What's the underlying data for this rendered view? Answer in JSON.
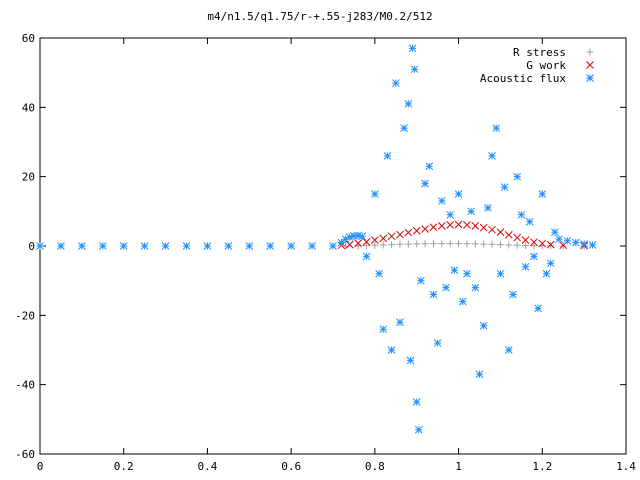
{
  "chart_data": {
    "type": "scatter",
    "title": "m4/n1.5/q1.75/r-+.55-j283/M0.2/512",
    "xlabel": "",
    "ylabel": "",
    "xlim": [
      0,
      1.4
    ],
    "ylim": [
      -60,
      60
    ],
    "x_ticks": [
      "0",
      "0.2",
      "0.4",
      "0.6",
      "0.8",
      "1",
      "1.2",
      "1.4"
    ],
    "y_ticks": [
      "-60",
      "-40",
      "-20",
      "0",
      "20",
      "40",
      "60"
    ],
    "grid": false,
    "legend_position": "top-right",
    "series": [
      {
        "name": "R stress",
        "marker": "plus",
        "color": "#a0a0a0",
        "points": [
          [
            0.73,
            0.0
          ],
          [
            0.76,
            0.05
          ],
          [
            0.78,
            0.1
          ],
          [
            0.8,
            0.2
          ],
          [
            0.82,
            0.3
          ],
          [
            0.84,
            0.4
          ],
          [
            0.86,
            0.5
          ],
          [
            0.88,
            0.55
          ],
          [
            0.9,
            0.6
          ],
          [
            0.92,
            0.65
          ],
          [
            0.94,
            0.7
          ],
          [
            0.96,
            0.7
          ],
          [
            0.98,
            0.7
          ],
          [
            1.0,
            0.7
          ],
          [
            1.02,
            0.65
          ],
          [
            1.04,
            0.6
          ],
          [
            1.06,
            0.55
          ],
          [
            1.08,
            0.5
          ],
          [
            1.1,
            0.4
          ],
          [
            1.12,
            0.3
          ],
          [
            1.14,
            0.2
          ],
          [
            1.16,
            0.15
          ],
          [
            1.18,
            0.1
          ],
          [
            1.2,
            0.05
          ],
          [
            1.22,
            0.02
          ],
          [
            1.25,
            0.0
          ],
          [
            1.3,
            0.0
          ]
        ]
      },
      {
        "name": "G work",
        "marker": "cross",
        "color": "#e00000",
        "points": [
          [
            0.72,
            0.2
          ],
          [
            0.74,
            0.4
          ],
          [
            0.76,
            0.8
          ],
          [
            0.78,
            1.2
          ],
          [
            0.8,
            1.7
          ],
          [
            0.82,
            2.2
          ],
          [
            0.84,
            2.8
          ],
          [
            0.86,
            3.3
          ],
          [
            0.88,
            3.9
          ],
          [
            0.9,
            4.4
          ],
          [
            0.92,
            4.9
          ],
          [
            0.94,
            5.4
          ],
          [
            0.96,
            5.8
          ],
          [
            0.98,
            6.1
          ],
          [
            1.0,
            6.2
          ],
          [
            1.02,
            6.1
          ],
          [
            1.04,
            5.8
          ],
          [
            1.06,
            5.3
          ],
          [
            1.08,
            4.7
          ],
          [
            1.1,
            4.0
          ],
          [
            1.12,
            3.2
          ],
          [
            1.14,
            2.4
          ],
          [
            1.16,
            1.7
          ],
          [
            1.18,
            1.1
          ],
          [
            1.2,
            0.7
          ],
          [
            1.22,
            0.4
          ],
          [
            1.25,
            0.2
          ],
          [
            1.3,
            0.1
          ]
        ]
      },
      {
        "name": "Acoustic flux",
        "marker": "star",
        "color": "#1e90ff",
        "points": [
          [
            0.0,
            0.0
          ],
          [
            0.05,
            0.0
          ],
          [
            0.1,
            0.0
          ],
          [
            0.15,
            0.0
          ],
          [
            0.2,
            0.0
          ],
          [
            0.25,
            0.0
          ],
          [
            0.3,
            0.0
          ],
          [
            0.35,
            0.0
          ],
          [
            0.4,
            0.0
          ],
          [
            0.45,
            0.0
          ],
          [
            0.5,
            0.0
          ],
          [
            0.55,
            0.0
          ],
          [
            0.6,
            0.0
          ],
          [
            0.65,
            0.0
          ],
          [
            0.7,
            0.0
          ],
          [
            0.72,
            1.0
          ],
          [
            0.73,
            2.0
          ],
          [
            0.74,
            2.6
          ],
          [
            0.75,
            2.9
          ],
          [
            0.76,
            3.0
          ],
          [
            0.77,
            2.8
          ],
          [
            0.78,
            -3.0
          ],
          [
            0.8,
            15.0
          ],
          [
            0.81,
            -8.0
          ],
          [
            0.82,
            -24.0
          ],
          [
            0.83,
            26.0
          ],
          [
            0.84,
            -30.0
          ],
          [
            0.85,
            47.0
          ],
          [
            0.86,
            -22.0
          ],
          [
            0.87,
            34.0
          ],
          [
            0.88,
            41.0
          ],
          [
            0.885,
            -33.0
          ],
          [
            0.89,
            57.0
          ],
          [
            0.895,
            51.0
          ],
          [
            0.9,
            -45.0
          ],
          [
            0.905,
            -53.0
          ],
          [
            0.91,
            -10.0
          ],
          [
            0.92,
            18.0
          ],
          [
            0.93,
            23.0
          ],
          [
            0.94,
            -14.0
          ],
          [
            0.95,
            -28.0
          ],
          [
            0.96,
            13.0
          ],
          [
            0.97,
            -12.0
          ],
          [
            0.98,
            9.0
          ],
          [
            0.99,
            -7.0
          ],
          [
            1.0,
            15.0
          ],
          [
            1.01,
            -16.0
          ],
          [
            1.02,
            -8.0
          ],
          [
            1.03,
            10.0
          ],
          [
            1.04,
            -12.0
          ],
          [
            1.05,
            -37.0
          ],
          [
            1.06,
            -23.0
          ],
          [
            1.07,
            11.0
          ],
          [
            1.08,
            26.0
          ],
          [
            1.09,
            34.0
          ],
          [
            1.1,
            -8.0
          ],
          [
            1.11,
            17.0
          ],
          [
            1.12,
            -30.0
          ],
          [
            1.13,
            -14.0
          ],
          [
            1.14,
            20.0
          ],
          [
            1.15,
            9.0
          ],
          [
            1.16,
            -6.0
          ],
          [
            1.17,
            7.0
          ],
          [
            1.18,
            -3.0
          ],
          [
            1.19,
            -18.0
          ],
          [
            1.2,
            15.0
          ],
          [
            1.21,
            -8.0
          ],
          [
            1.22,
            -5.0
          ],
          [
            1.23,
            4.0
          ],
          [
            1.24,
            2.0
          ],
          [
            1.26,
            1.5
          ],
          [
            1.28,
            1.0
          ],
          [
            1.3,
            0.6
          ],
          [
            1.32,
            0.3
          ]
        ]
      }
    ]
  }
}
